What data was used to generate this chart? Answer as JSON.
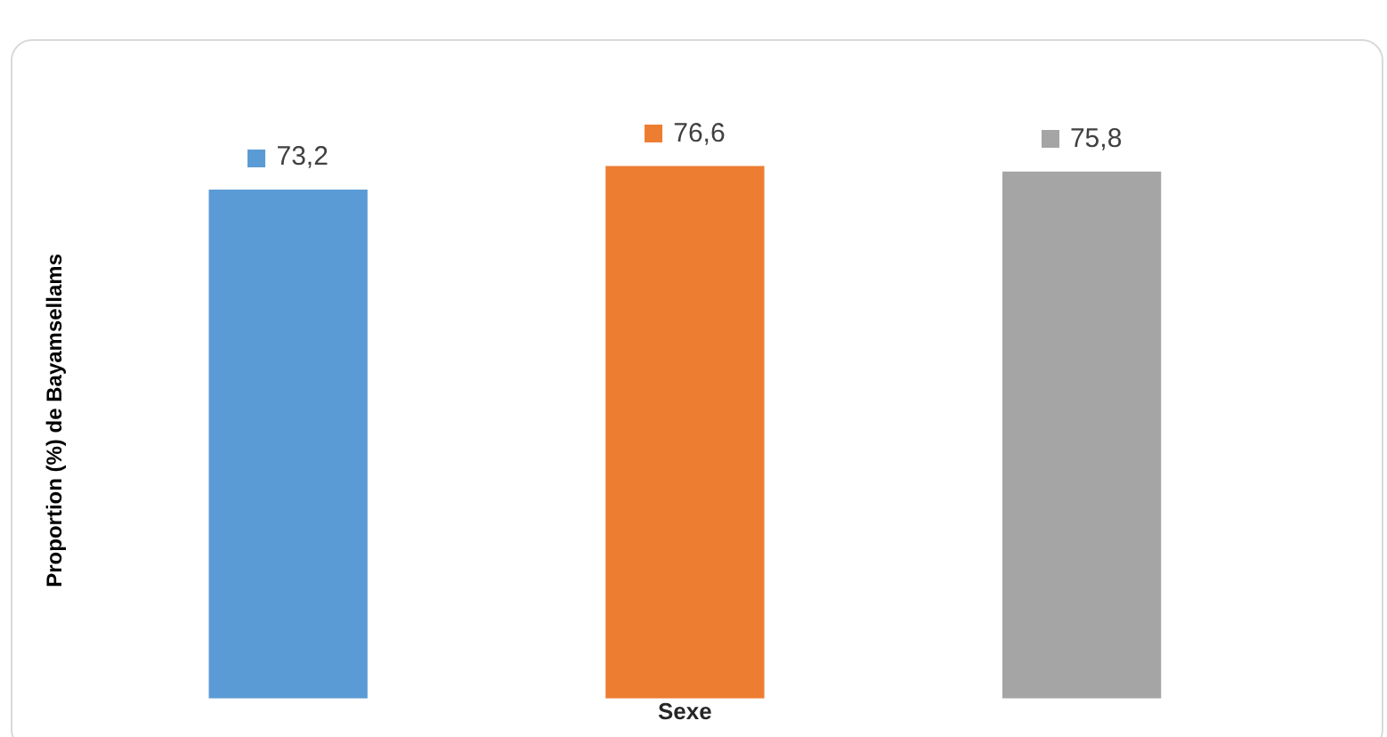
{
  "chart_data": {
    "type": "bar",
    "ylabel": "Proportion (%) de Bayamsellams",
    "xlabel": "Sexe",
    "categories": [
      null,
      null,
      null
    ],
    "values": [
      73.2,
      76.6,
      75.8
    ],
    "colors": [
      "#5b9bd5",
      "#ed7d31",
      "#a5a5a5"
    ],
    "data_labels": true,
    "value_labels": [
      "73,2",
      "76,6",
      "75,8"
    ],
    "grid": false,
    "legend": false
  }
}
